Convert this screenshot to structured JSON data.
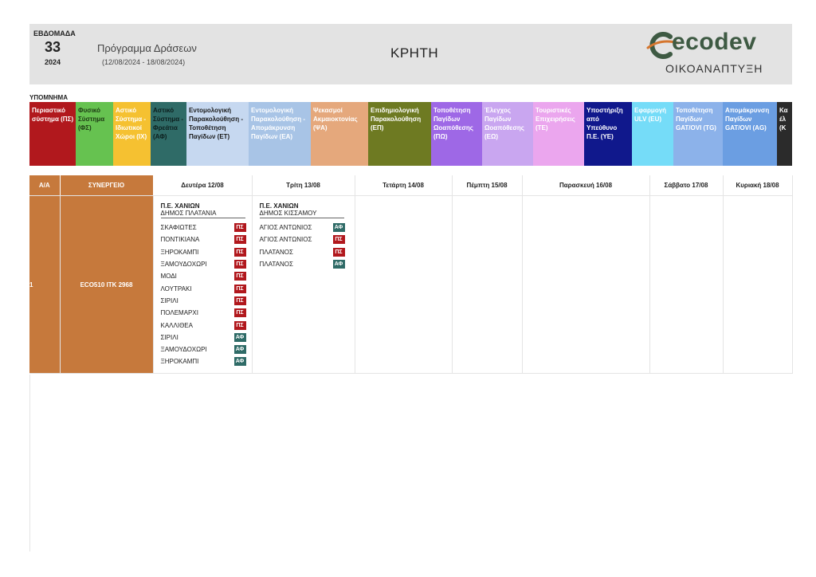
{
  "header": {
    "week_label": "ΕΒΔΟΜΑΔΑ",
    "week_number": "33",
    "year": "2024",
    "program_title": "Πρόγραμμα Δράσεων",
    "program_dates": "(12/08/2024 - 18/08/2024)",
    "region": "ΚΡΗΤΗ",
    "logo_word": "ecodev",
    "logo_sub": "ΟΙΚΟΑΝΑΠΤΥΞΗ",
    "logo_colors": {
      "mark_dark": "#3e5a43",
      "mark_accent": "#d5762e"
    }
  },
  "legend": {
    "title": "ΥΠΟΜΝΗΜΑ",
    "items": [
      {
        "label": "Περιαστικό σύστημα (ΠΣ)",
        "bg": "#b1181d",
        "fg": "#ffffff",
        "w": 58
      },
      {
        "label": "Φυσικό Σύστημα (ΦΣ)",
        "bg": "#66c250",
        "fg": "#1d3a14",
        "w": 47
      },
      {
        "label": "Αστικό Σύστημα - Ιδιωτικοί Χώροι (ΙΧ)",
        "bg": "#f5c131",
        "fg": "#ffffff",
        "w": 47
      },
      {
        "label": "Αστικό Σύστημα - Φρεάτια (ΑΦ)",
        "bg": "#2f6b67",
        "fg": "#0c1f1e",
        "w": 45
      },
      {
        "label": "Εντομολογική Παρακολούθηση - Τοποθέτηση Παγίδων (ΕΤ)",
        "bg": "#c6d8f0",
        "fg": "#1a1a1a",
        "w": 78
      },
      {
        "label": "Εντομολογική Παρακολούθηση - Απομάκρυνση Παγίδων (ΕΑ)",
        "bg": "#a8c4e6",
        "fg": "#ffffff",
        "w": 78
      },
      {
        "label": "Ψεκασμοί Ακμαιοκτονίας (ΨΑ)",
        "bg": "#e5a87c",
        "fg": "#ffffff",
        "w": 72
      },
      {
        "label": "Επιδημιολογική Παρακολούθηση (ΕΠ)",
        "bg": "#6e7a22",
        "fg": "#ffffff",
        "w": 79
      },
      {
        "label": "Τοποθέτηση Παγίδων Ωοαπόθεσης (ΠΩ)",
        "bg": "#9e68e6",
        "fg": "#ffffff",
        "w": 64
      },
      {
        "label": "Έλεγχος Παγίδων Ωοαπόθεσης (ΕΩ)",
        "bg": "#c9a6f0",
        "fg": "#ffffff",
        "w": 64
      },
      {
        "label": "Τουριστικές Επιχειρήσεις (ΤΕ)",
        "bg": "#eba6ee",
        "fg": "#ffffff",
        "w": 64
      },
      {
        "label": "Υποστήριξη από Υπεύθυνο Π.Ε. (ΥΕ)",
        "bg": "#10188c",
        "fg": "#ffffff",
        "w": 60
      },
      {
        "label": "Εφαρμογή ULV (EU)",
        "bg": "#75dcf8",
        "fg": "#ffffff",
        "w": 52
      },
      {
        "label": "Τοποθέτηση Παγίδων GAT/OVI (TG)",
        "bg": "#8cb2ea",
        "fg": "#ffffff",
        "w": 62
      },
      {
        "label": "Απομάκρυνση Παγίδων GAT/OVI (AG)",
        "bg": "#6b9ee2",
        "fg": "#ffffff",
        "w": 68
      },
      {
        "label": "Κα έλ (Κ",
        "bg": "#2b2b2b",
        "fg": "#ffffff",
        "w": 19
      }
    ]
  },
  "table": {
    "headers": {
      "aa": "Α/Α",
      "team": "ΣΥΝΕΡΓΕΙΟ",
      "days": [
        "Δευτέρα 12/08",
        "Τρίτη 13/08",
        "Τετάρτη 14/08",
        "Πέμπτη 15/08",
        "Παρασκευή 16/08",
        "Σάββατο 17/08",
        "Κυριακή 18/08"
      ]
    },
    "row": {
      "aa": "1",
      "team": "ECO510  ΙΤΚ 2968",
      "monday": {
        "dept": "Π.Ε. ΧΑΝΙΩΝ",
        "municipality": "ΔΗΜΟΣ ΠΛΑΤΑΝΙΑ",
        "activities": [
          {
            "place": "ΣΚΑΦΙΩΤΕΣ",
            "code": "ΠΣ"
          },
          {
            "place": "ΠΟΝΤΙΚΙΑΝΑ",
            "code": "ΠΣ"
          },
          {
            "place": "ΞΗΡΟΚΑΜΠΙ",
            "code": "ΠΣ"
          },
          {
            "place": "ΞΑΜΟΥΔΟΧΩΡΙ",
            "code": "ΠΣ"
          },
          {
            "place": "ΜΟΔΙ",
            "code": "ΠΣ"
          },
          {
            "place": "ΛΟΥΤΡΑΚΙ",
            "code": "ΠΣ"
          },
          {
            "place": "ΣΙΡΙΛΙ",
            "code": "ΠΣ"
          },
          {
            "place": "ΠΟΛΕΜΑΡΧΙ",
            "code": "ΠΣ"
          },
          {
            "place": "ΚΑΛΛΙΘΕΑ",
            "code": "ΠΣ"
          },
          {
            "place": "ΣΙΡΙΛΙ",
            "code": "ΑΦ"
          },
          {
            "place": "ΞΑΜΟΥΔΟΧΩΡΙ",
            "code": "ΑΦ"
          },
          {
            "place": "ΞΗΡΟΚΑΜΠΙ",
            "code": "ΑΦ"
          }
        ]
      },
      "tuesday": {
        "dept": "Π.Ε. ΧΑΝΙΩΝ",
        "municipality": "ΔΗΜΟΣ ΚΙΣΣΑΜΟΥ",
        "activities": [
          {
            "place": "ΑΓΙΟΣ ΑΝΤΩΝΙΟΣ",
            "code": "ΑΦ"
          },
          {
            "place": "ΑΓΙΟΣ ΑΝΤΩΝΙΟΣ",
            "code": "ΠΣ"
          },
          {
            "place": "ΠΛΑΤΑΝΟΣ",
            "code": "ΠΣ"
          },
          {
            "place": "ΠΛΑΤΑΝΟΣ",
            "code": "ΑΦ"
          }
        ]
      }
    },
    "badge_colors": {
      "ΠΣ": "#b1181d",
      "ΑΦ": "#2f6b67"
    },
    "team_color": "#c6793c"
  }
}
